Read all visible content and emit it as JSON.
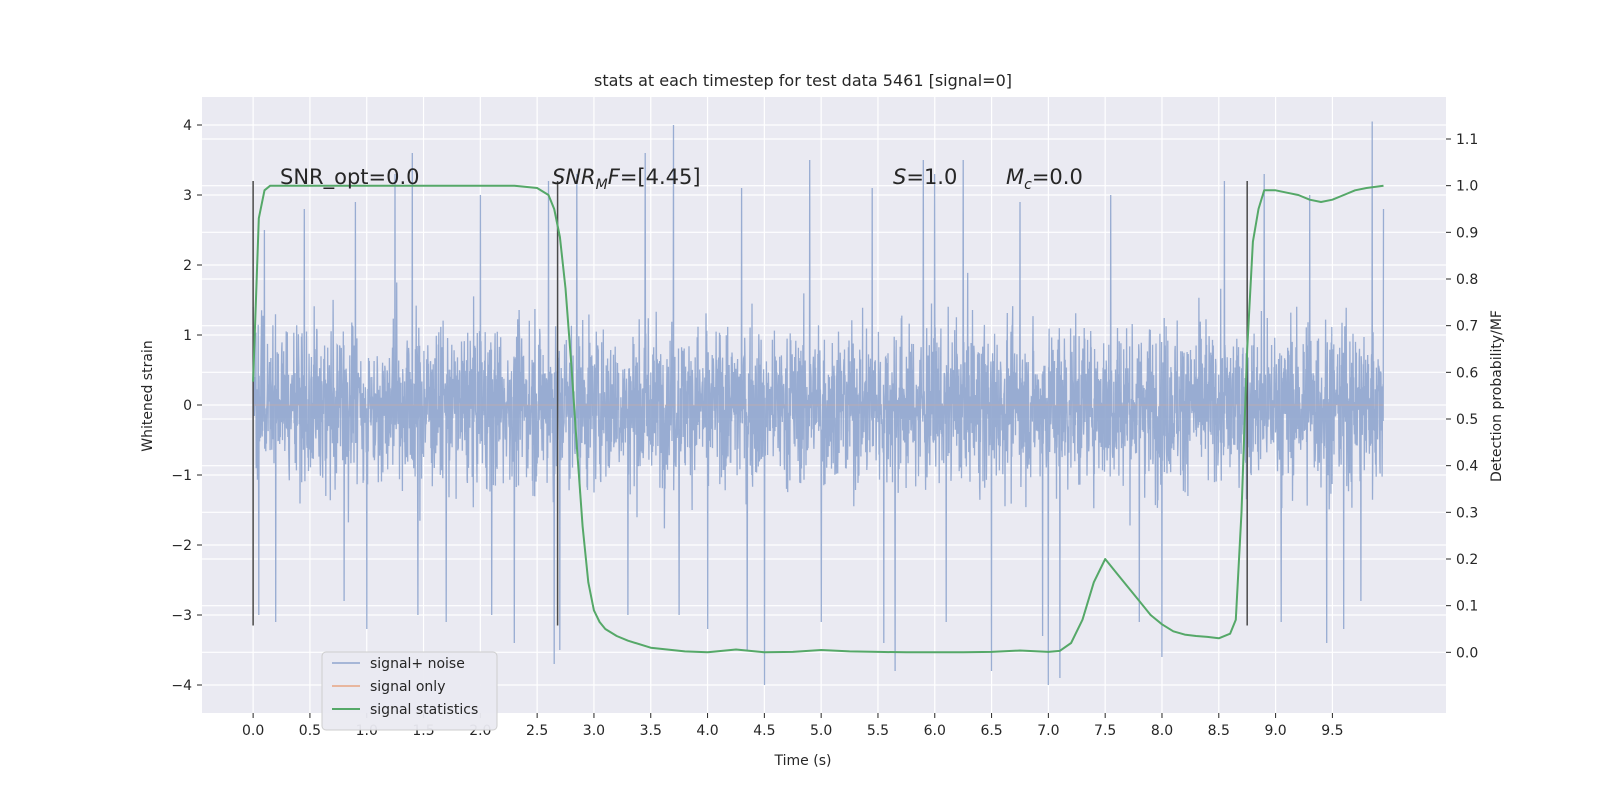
{
  "chart_data": {
    "type": "line",
    "title": "stats at each timestep for test data 5461 [signal=0]",
    "xlabel": "Time (s)",
    "ylabel": "Whitened strain",
    "ylabel_right": "Detection probability/MF",
    "xlim": [
      -0.45,
      10.5
    ],
    "ylim": [
      -4.4,
      4.4
    ],
    "ylim_right": [
      -0.13,
      1.19
    ],
    "x_ticks": [
      "0.0",
      "0.5",
      "1.0",
      "1.5",
      "2.0",
      "2.5",
      "3.0",
      "3.5",
      "4.0",
      "4.5",
      "5.0",
      "5.5",
      "6.0",
      "6.5",
      "7.0",
      "7.5",
      "8.0",
      "8.5",
      "9.0",
      "9.5"
    ],
    "y_ticks": [
      "4",
      "3",
      "2",
      "1",
      "0",
      "−1",
      "−2",
      "−3",
      "−4"
    ],
    "y_ticks_right": [
      "1.1",
      "1.0",
      "0.9",
      "0.8",
      "0.7",
      "0.6",
      "0.5",
      "0.4",
      "0.3",
      "0.2",
      "0.1",
      "0.0"
    ],
    "grid": true,
    "legend_position": "lower-left",
    "colors": {
      "background": "#eaeaf2",
      "grid": "#ffffff",
      "noise": "#8fa5ce",
      "signal": "#e8a582",
      "statistics": "#55a868",
      "vlines": "#4a4a4a"
    },
    "series": [
      {
        "name": "signal+ noise",
        "axis": "left",
        "x_range": [
          0,
          9.95
        ],
        "envelope_typical": [
          -1.9,
          1.95
        ],
        "spike_peaks": [
          {
            "x": 0.0,
            "y": 1.4
          },
          {
            "x": 0.05,
            "y": -3.0
          },
          {
            "x": 0.1,
            "y": 2.5
          },
          {
            "x": 0.2,
            "y": -3.1
          },
          {
            "x": 0.45,
            "y": 2.8
          },
          {
            "x": 0.8,
            "y": -2.8
          },
          {
            "x": 0.9,
            "y": 2.9
          },
          {
            "x": 1.0,
            "y": -3.2
          },
          {
            "x": 1.25,
            "y": 3.3
          },
          {
            "x": 1.4,
            "y": 3.6
          },
          {
            "x": 1.45,
            "y": -3.0
          },
          {
            "x": 1.7,
            "y": -3.1
          },
          {
            "x": 2.0,
            "y": 3.0
          },
          {
            "x": 2.1,
            "y": -3.0
          },
          {
            "x": 2.3,
            "y": -3.4
          },
          {
            "x": 2.6,
            "y": 3.2
          },
          {
            "x": 2.7,
            "y": -3.5
          },
          {
            "x": 2.65,
            "y": -3.7
          },
          {
            "x": 2.85,
            "y": 3.3
          },
          {
            "x": 3.3,
            "y": -3.0
          },
          {
            "x": 3.45,
            "y": 3.6
          },
          {
            "x": 3.7,
            "y": 4.0
          },
          {
            "x": 3.75,
            "y": -3.0
          },
          {
            "x": 4.0,
            "y": -3.2
          },
          {
            "x": 4.3,
            "y": 3.1
          },
          {
            "x": 4.35,
            "y": -3.5
          },
          {
            "x": 4.5,
            "y": -4.0
          },
          {
            "x": 4.9,
            "y": 3.5
          },
          {
            "x": 5.0,
            "y": -3.1
          },
          {
            "x": 5.45,
            "y": 3.1
          },
          {
            "x": 5.55,
            "y": -3.4
          },
          {
            "x": 5.65,
            "y": -3.8
          },
          {
            "x": 5.9,
            "y": 3.5
          },
          {
            "x": 6.0,
            "y": 3.3
          },
          {
            "x": 6.1,
            "y": -3.1
          },
          {
            "x": 6.25,
            "y": 3.5
          },
          {
            "x": 6.5,
            "y": -3.8
          },
          {
            "x": 6.75,
            "y": 2.9
          },
          {
            "x": 6.95,
            "y": -3.3
          },
          {
            "x": 7.0,
            "y": -4.0
          },
          {
            "x": 7.1,
            "y": -3.9
          },
          {
            "x": 7.55,
            "y": 3.0
          },
          {
            "x": 7.8,
            "y": -3.1
          },
          {
            "x": 8.0,
            "y": -3.6
          },
          {
            "x": 8.55,
            "y": 3.2
          },
          {
            "x": 8.9,
            "y": 3.3
          },
          {
            "x": 9.05,
            "y": -3.1
          },
          {
            "x": 9.3,
            "y": 3.0
          },
          {
            "x": 9.45,
            "y": -3.4
          },
          {
            "x": 9.6,
            "y": -3.2
          },
          {
            "x": 9.75,
            "y": -2.8
          },
          {
            "x": 9.85,
            "y": 4.05
          },
          {
            "x": 9.95,
            "y": 2.8
          }
        ]
      },
      {
        "name": "signal only",
        "axis": "left",
        "x": [
          0,
          9.95
        ],
        "y": [
          0,
          0
        ]
      },
      {
        "name": "signal statistics",
        "axis": "right",
        "x": [
          0.0,
          0.05,
          0.1,
          0.15,
          0.2,
          0.3,
          0.5,
          1.0,
          1.5,
          2.0,
          2.3,
          2.5,
          2.6,
          2.65,
          2.7,
          2.75,
          2.8,
          2.85,
          2.9,
          2.95,
          3.0,
          3.05,
          3.1,
          3.2,
          3.3,
          3.5,
          3.8,
          4.0,
          4.25,
          4.5,
          4.75,
          5.0,
          5.25,
          5.5,
          5.75,
          6.0,
          6.25,
          6.5,
          6.75,
          7.0,
          7.1,
          7.2,
          7.3,
          7.4,
          7.5,
          7.6,
          7.7,
          7.8,
          7.9,
          8.0,
          8.1,
          8.2,
          8.3,
          8.4,
          8.5,
          8.6,
          8.65,
          8.7,
          8.75,
          8.8,
          8.85,
          8.9,
          9.0,
          9.1,
          9.2,
          9.3,
          9.4,
          9.5,
          9.6,
          9.7,
          9.8,
          9.95
        ],
        "y": [
          0.58,
          0.93,
          0.99,
          1.0,
          1.0,
          1.0,
          1.0,
          1.0,
          1.0,
          1.0,
          1.0,
          0.995,
          0.98,
          0.95,
          0.89,
          0.78,
          0.62,
          0.44,
          0.27,
          0.15,
          0.09,
          0.065,
          0.05,
          0.035,
          0.025,
          0.01,
          0.002,
          0.0,
          0.006,
          0.0,
          0.001,
          0.005,
          0.002,
          0.001,
          0.0,
          0.0,
          0.0,
          0.001,
          0.004,
          0.001,
          0.003,
          0.02,
          0.07,
          0.15,
          0.2,
          0.17,
          0.14,
          0.11,
          0.08,
          0.06,
          0.045,
          0.038,
          0.035,
          0.033,
          0.03,
          0.04,
          0.07,
          0.3,
          0.65,
          0.88,
          0.95,
          0.99,
          0.99,
          0.985,
          0.98,
          0.97,
          0.965,
          0.97,
          0.98,
          0.99,
          0.995,
          1.0
        ]
      }
    ],
    "vertical_lines": [
      {
        "x": 0.0,
        "y_range": [
          -3.15,
          3.2
        ]
      },
      {
        "x": 2.68,
        "y_range": [
          -3.15,
          3.2
        ]
      },
      {
        "x": 8.75,
        "y_range": [
          -3.15,
          3.2
        ]
      }
    ],
    "annotations": [
      {
        "key": "snr_opt",
        "label": "SNR_opt=0.0",
        "x": 0.2,
        "y": 3.2
      },
      {
        "key": "snr_mf",
        "label": "SNRMF=[4.45]",
        "x": 2.6,
        "y": 3.2
      },
      {
        "key": "s",
        "label": "S=1.0",
        "x": 5.6,
        "y": 3.2
      },
      {
        "key": "mc",
        "label": "Mc=0.0",
        "x": 6.6,
        "y": 3.2
      }
    ],
    "annotation_parts": {
      "snr_opt": "SNR_opt=0.0",
      "snr_mf_main": "SNR",
      "snr_mf_sub": "M",
      "snr_mf_mid": "F",
      "snr_mf_rest": "=[4.45]",
      "s_italic": "S",
      "s_rest": "=1.0",
      "mc_main": "M",
      "mc_sub": "c",
      "mc_rest": "=0.0"
    }
  }
}
